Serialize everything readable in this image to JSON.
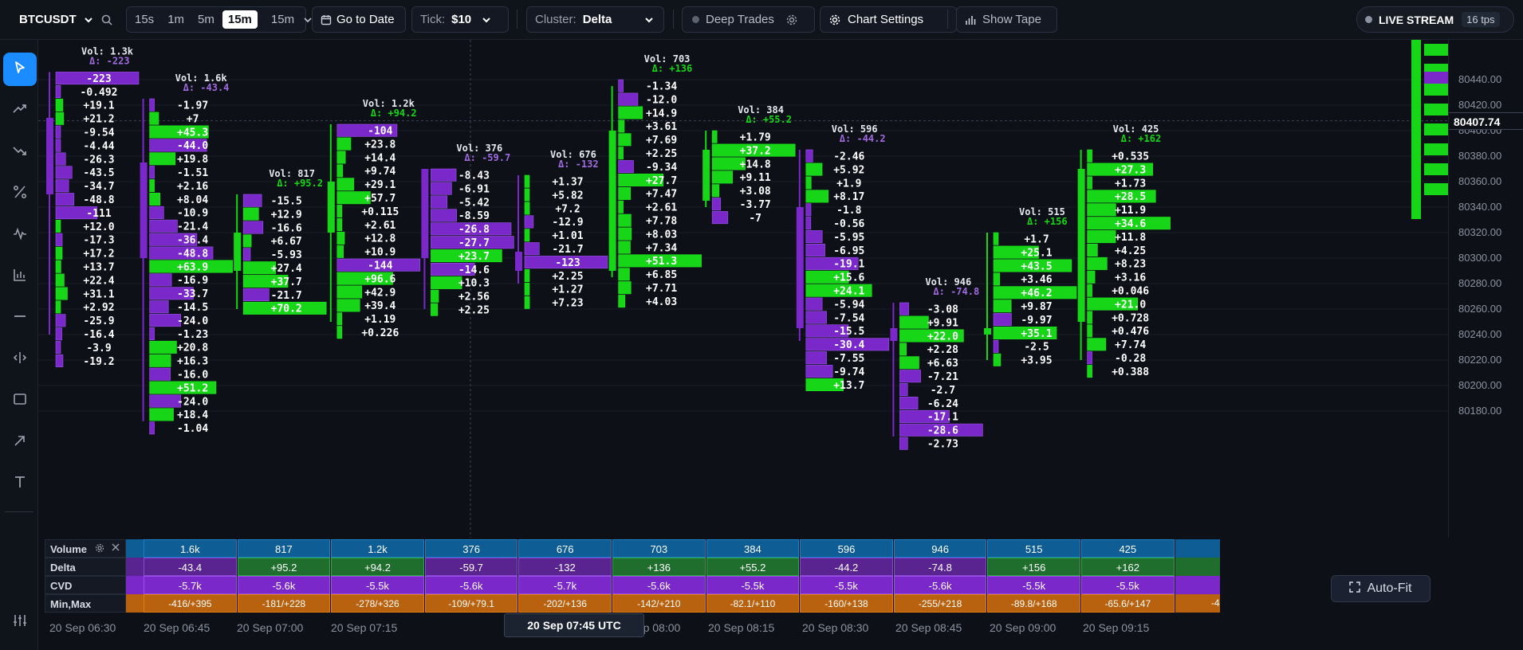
{
  "toolbar": {
    "symbol": "BTCUSDT",
    "timeframes": [
      "15s",
      "1m",
      "5m",
      "15m"
    ],
    "active_timeframe": "15m",
    "timeframe_dropdown": "15m",
    "goto_label": "Go to Date",
    "tick_label": "Tick:",
    "tick_value": "$10",
    "cluster_label": "Cluster:",
    "cluster_value": "Delta",
    "deep_trades_label": "Deep Trades",
    "chart_settings_label": "Chart Settings",
    "show_tape_label": "Show Tape",
    "live_label": "LIVE STREAM",
    "tps": "16 tps"
  },
  "colors": {
    "buy": "#17d617",
    "sell": "#7a28c9",
    "bg": "#0d1117",
    "accent": "#1a8cff",
    "minmax": "#b8610e"
  },
  "left_tools": [
    "cursor-icon",
    "trend-up-icon",
    "trend-down-icon",
    "percent-icon",
    "pulse-icon",
    "bar-chart-icon",
    "horizontal-line-icon",
    "measure-icon",
    "rectangle-icon",
    "arrow-icon",
    "text-icon",
    "settings-sliders-icon"
  ],
  "price_axis": {
    "ticks": [
      "80440.00",
      "80420.00",
      "80400.00",
      "80380.00",
      "80360.00",
      "80340.00",
      "80320.00",
      "80300.00",
      "80280.00",
      "80260.00",
      "80240.00",
      "80220.00",
      "80200.00",
      "80180.00"
    ],
    "current_price": "80407.74"
  },
  "time_axis": {
    "labels": [
      "20 Sep 06:30",
      "20 Sep 06:45",
      "20 Sep 07:00",
      "20 Sep 07:15",
      "20 Sep 07:45",
      "20 Sep 08:00",
      "20 Sep 08:15",
      "20 Sep 08:30",
      "20 Sep 08:45",
      "20 Sep 09:00",
      "20 Sep 09:15"
    ],
    "crosshair_time": "20 Sep 07:45 UTC"
  },
  "panel": {
    "rows": [
      "Volume",
      "Delta",
      "CVD",
      "Min,Max"
    ],
    "volume": [
      "1.6k",
      "817",
      "1.2k",
      "376",
      "676",
      "703",
      "384",
      "596",
      "946",
      "515",
      "425"
    ],
    "delta": [
      "-43.4",
      "+95.2",
      "+94.2",
      "-59.7",
      "-132",
      "+136",
      "+55.2",
      "-44.2",
      "-74.8",
      "+156",
      "+162"
    ],
    "cvd": [
      "-5.7k",
      "-5.6k",
      "-5.5k",
      "-5.6k",
      "-5.7k",
      "-5.6k",
      "-5.5k",
      "-5.5k",
      "-5.6k",
      "-5.5k",
      "-5.5k"
    ],
    "minmax": [
      "-416/+395",
      "-181/+228",
      "-278/+326",
      "-109/+79.1",
      "-202/+136",
      "-142/+210",
      "-82.1/+110",
      "-160/+138",
      "-255/+218",
      "-89.8/+168",
      "-65.6/+147"
    ],
    "partial_minmax": "-4"
  },
  "autofit_label": "Auto-Fit",
  "chart_data": {
    "type": "footprint",
    "price_min": 80170,
    "price_max": 80450,
    "tick": 10,
    "clusters": [
      {
        "vol": "Vol: 1.3k",
        "delta": "Δ: -223",
        "dsign": -1,
        "top": 80446,
        "open": 80410,
        "close": 80350,
        "low": 80240,
        "high": 80446,
        "levels": [
          "-223",
          "-0.492",
          "+19.1",
          "+21.2",
          "-9.54",
          "-4.44",
          "-26.3",
          "-43.5",
          "-34.7",
          "-48.8",
          "-111",
          "+12.0",
          "-17.3",
          "+17.2",
          "+13.7",
          "+22.4",
          "+31.1",
          "+2.92",
          "-25.9",
          "-16.4",
          "-3.9",
          "-19.2"
        ]
      },
      {
        "vol": "Vol: 1.6k",
        "delta": "Δ: -43.4",
        "dsign": -1,
        "top": 80425,
        "open": 80375,
        "close": 80300,
        "low": 80172,
        "high": 80425,
        "levels": [
          "-1.97",
          "+7",
          "+45.3",
          "-44.0",
          "+19.8",
          "-1.51",
          "+2.16",
          "+8.04",
          "-10.9",
          "-21.4",
          "-36.4",
          "-48.8",
          "+63.9",
          "-16.9",
          "-33.7",
          "-14.5",
          "-24.0",
          "-1.23",
          "+20.8",
          "+16.3",
          "-16.0",
          "+51.2",
          "-24.0",
          "+18.4",
          "-1.04"
        ]
      },
      {
        "vol": "Vol: 817",
        "delta": "Δ: +95.2",
        "dsign": 1,
        "top": 80350,
        "open": 80290,
        "close": 80320,
        "low": 80260,
        "high": 80350,
        "levels": [
          "-15.5",
          "+12.9",
          "-16.6",
          "+6.67",
          "-5.93",
          "+27.4",
          "+37.7",
          "-21.7",
          "+70.2"
        ]
      },
      {
        "vol": "Vol: 1.2k",
        "delta": "Δ: +94.2",
        "dsign": 1,
        "top": 80405,
        "open": 80320,
        "close": 80360,
        "low": 80250,
        "high": 80405,
        "levels": [
          "-104",
          "+23.8",
          "+14.4",
          "+9.74",
          "+29.1",
          "+57.7",
          "+0.115",
          "+2.61",
          "+12.8",
          "+10.9",
          "-144",
          "+96.6",
          "+42.9",
          "+39.4",
          "+1.19",
          "+0.226"
        ]
      },
      {
        "vol": "Vol: 376",
        "delta": "Δ: -59.7",
        "dsign": -1,
        "top": 80370,
        "open": 80370,
        "close": 80300,
        "low": 80260,
        "high": 80370,
        "levels": [
          "-8.43",
          "-6.91",
          "-5.42",
          "-8.59",
          "-26.8",
          "-27.7",
          "+23.7",
          "-14.6",
          "+10.3",
          "+2.56",
          "+2.25"
        ]
      },
      {
        "vol": "Vol: 676",
        "delta": "Δ: -132",
        "dsign": -1,
        "top": 80365,
        "open": 80305,
        "close": 80290,
        "low": 80280,
        "high": 80365,
        "levels": [
          "+1.37",
          "+5.82",
          "+7.2",
          "-12.9",
          "+1.01",
          "-21.7",
          "-123",
          "+2.25",
          "+1.27",
          "+7.23"
        ]
      },
      {
        "vol": "Vol: 703",
        "delta": "Δ: +136",
        "dsign": 1,
        "top": 80440,
        "open": 80290,
        "close": 80400,
        "low": 80285,
        "high": 80435,
        "levels": [
          "-1.34",
          "-12.0",
          "+14.9",
          "+3.61",
          "+7.69",
          "+2.25",
          "-9.34",
          "+27.7",
          "+7.47",
          "+2.61",
          "+7.78",
          "+8.03",
          "+7.34",
          "+51.3",
          "+6.85",
          "+7.71",
          "+4.03"
        ]
      },
      {
        "vol": "Vol: 384",
        "delta": "Δ: +55.2",
        "dsign": 1,
        "top": 80400,
        "open": 80345,
        "close": 80385,
        "low": 80340,
        "high": 80400,
        "levels": [
          "+1.79",
          "+37.2",
          "+14.8",
          "+9.11",
          "+3.08",
          "-3.77",
          "-7"
        ]
      },
      {
        "vol": "Vol: 596",
        "delta": "Δ: -44.2",
        "dsign": -1,
        "top": 80385,
        "open": 80340,
        "close": 80245,
        "low": 80235,
        "high": 80385,
        "levels": [
          "-2.46",
          "+5.92",
          "+1.9",
          "+8.17",
          "-1.8",
          "-0.56",
          "-5.95",
          "-6.95",
          "-19.1",
          "+15.6",
          "+24.1",
          "-5.94",
          "-7.54",
          "-15.5",
          "-30.4",
          "-7.55",
          "-9.74",
          "+13.7"
        ]
      },
      {
        "vol": "Vol: 946",
        "delta": "Δ: -74.8",
        "dsign": -1,
        "top": 80265,
        "open": 80245,
        "close": 80235,
        "low": 80160,
        "high": 80265,
        "levels": [
          "-3.08",
          "+9.91",
          "+22.0",
          "+2.28",
          "+6.63",
          "-7.21",
          "-2.7",
          "-6.24",
          "-17.1",
          "-28.6",
          "-2.73"
        ]
      },
      {
        "vol": "Vol: 515",
        "delta": "Δ: +156",
        "dsign": 1,
        "top": 80320,
        "open": 80240,
        "close": 80245,
        "low": 80220,
        "high": 80320,
        "levels": [
          "+1.7",
          "+25.1",
          "+43.5",
          "+3.46",
          "+46.2",
          "+9.87",
          "-9.97",
          "+35.1",
          "-2.5",
          "+3.95"
        ]
      },
      {
        "vol": "Vol: 425",
        "delta": "Δ: +162",
        "dsign": 1,
        "top": 80385,
        "open": 80250,
        "close": 80370,
        "low": 80220,
        "high": 80385,
        "levels": [
          "+0.535",
          "+27.3",
          "+1.73",
          "+28.5",
          "+11.9",
          "+34.6",
          "+11.8",
          "+4.25",
          "+8.23",
          "+3.16",
          "+0.046",
          "+21.0",
          "+0.728",
          "+0.476",
          "+7.74",
          "-0.28",
          "+0.388"
        ]
      }
    ]
  }
}
